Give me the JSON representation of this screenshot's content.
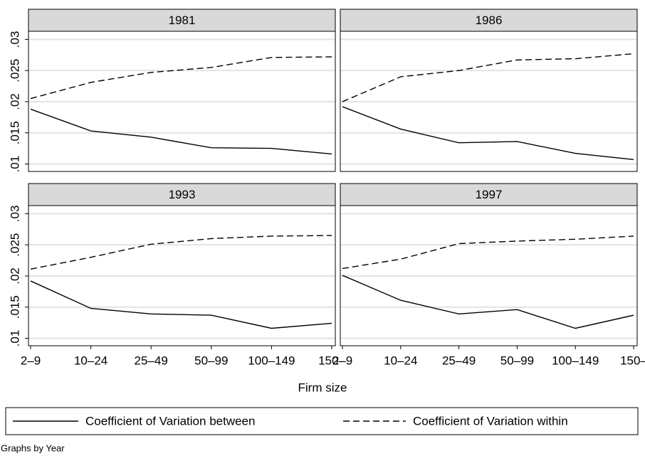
{
  "chart_data": {
    "type": "line",
    "xlabel": "Firm size",
    "note": "Graphs by Year",
    "categories": [
      "2–9",
      "10–24",
      "25–49",
      "50–99",
      "100–149",
      "150–"
    ],
    "ylim": [
      0.0088,
      0.0313
    ],
    "yticks": [
      {
        "value": 0.01,
        "label": ".01"
      },
      {
        "value": 0.015,
        "label": ".015"
      },
      {
        "value": 0.02,
        "label": ".02"
      },
      {
        "value": 0.025,
        "label": ".025"
      },
      {
        "value": 0.03,
        "label": ".03"
      }
    ],
    "grid": true,
    "series": [
      {
        "name": "Coefficient of Variation between",
        "color": "#000000",
        "dash": "none"
      },
      {
        "name": "Coefficient of Variation within",
        "color": "#000000",
        "dash": "9 5"
      }
    ],
    "panels": [
      {
        "title": "1981",
        "series": [
          {
            "values": [
              0.0188,
              0.0153,
              0.0143,
              0.0126,
              0.0125,
              0.0116
            ]
          },
          {
            "values": [
              0.0205,
              0.0231,
              0.0247,
              0.0255,
              0.0271,
              0.0272
            ]
          }
        ]
      },
      {
        "title": "1986",
        "series": [
          {
            "values": [
              0.0192,
              0.0156,
              0.0134,
              0.0136,
              0.0117,
              0.0107
            ]
          },
          {
            "values": [
              0.02,
              0.024,
              0.025,
              0.0267,
              0.0269,
              0.0277
            ]
          }
        ]
      },
      {
        "title": "1993",
        "series": [
          {
            "values": [
              0.0192,
              0.0148,
              0.0139,
              0.0137,
              0.0116,
              0.0124
            ]
          },
          {
            "values": [
              0.0211,
              0.023,
              0.0251,
              0.026,
              0.0264,
              0.0265
            ]
          }
        ]
      },
      {
        "title": "1997",
        "series": [
          {
            "values": [
              0.0201,
              0.0161,
              0.0139,
              0.0146,
              0.0116,
              0.0137
            ]
          },
          {
            "values": [
              0.0212,
              0.0227,
              0.0252,
              0.0256,
              0.0259,
              0.0264
            ]
          }
        ]
      }
    ]
  }
}
